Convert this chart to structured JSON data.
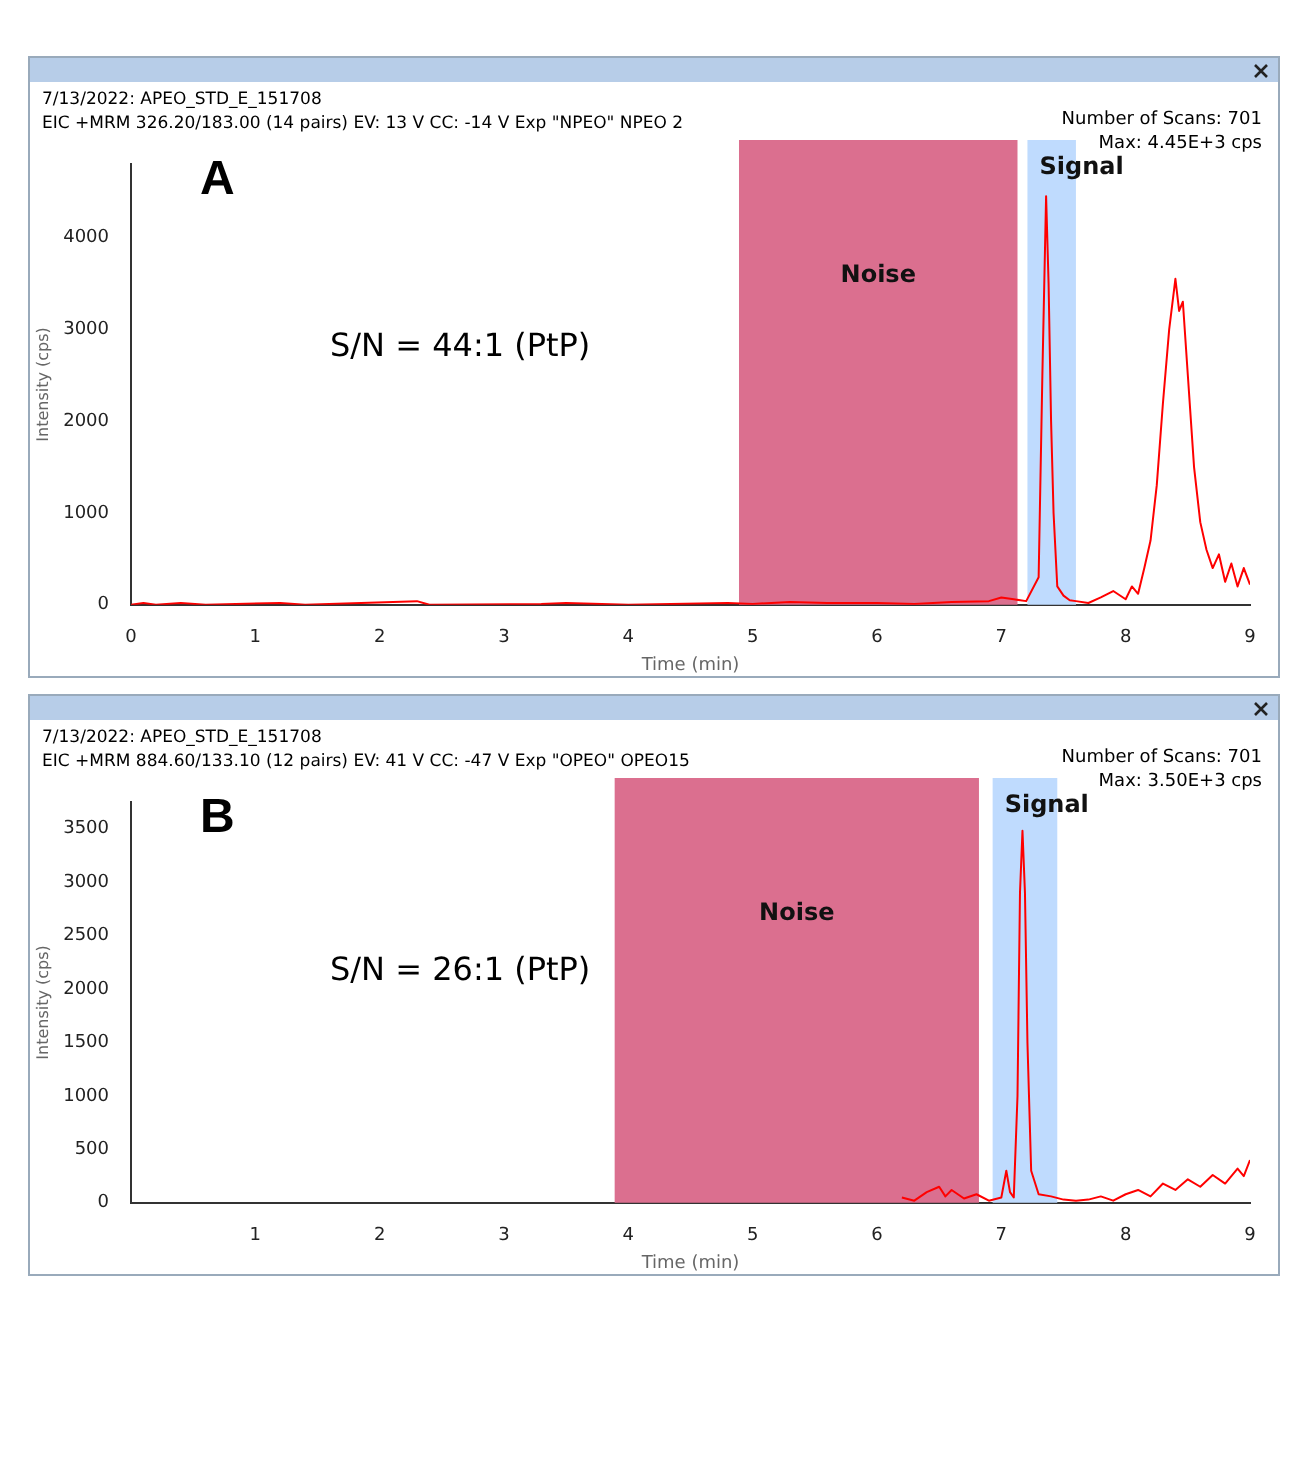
{
  "chart_data": [
    {
      "type": "line",
      "title": "7/13/2022: APEO_STD_E_151708",
      "subtitle": "EIC +MRM 326.20/183.00 (14 pairs) EV: 13 V CC: -14 V Exp \"NPEO\" NPEO 2",
      "xlabel": "Time (min)",
      "ylabel": "Intensity (cps)",
      "annotations": [
        "A",
        "S/N = 44:1 (PtP)",
        "Number of Scans: 701",
        "Max: 4.45E+3 cps"
      ],
      "x": [
        0,
        0.1,
        0.2,
        0.4,
        0.6,
        1.2,
        1.4,
        2.3,
        2.4,
        3.3,
        3.5,
        4.0,
        4.8,
        5.0,
        5.3,
        5.6,
        6.0,
        6.3,
        6.6,
        6.9,
        7.0,
        7.1,
        7.2,
        7.3,
        7.33,
        7.36,
        7.38,
        7.4,
        7.42,
        7.45,
        7.5,
        7.55,
        7.6,
        7.7,
        7.8,
        7.9,
        8.0,
        8.05,
        8.1,
        8.15,
        8.2,
        8.25,
        8.3,
        8.35,
        8.4,
        8.43,
        8.46,
        8.5,
        8.55,
        8.6,
        8.65,
        8.7,
        8.75,
        8.8,
        8.85,
        8.9,
        8.95,
        9.0
      ],
      "series": [
        {
          "color": "#ff0000",
          "values": [
            0,
            20,
            0,
            20,
            0,
            20,
            0,
            40,
            0,
            10,
            20,
            0,
            20,
            10,
            30,
            20,
            20,
            10,
            30,
            40,
            80,
            60,
            40,
            300,
            2500,
            4450,
            3500,
            2000,
            1000,
            200,
            100,
            50,
            40,
            20,
            80,
            150,
            60,
            200,
            120,
            400,
            700,
            1300,
            2200,
            3000,
            3550,
            3200,
            3300,
            2500,
            1500,
            900,
            600,
            400,
            550,
            250,
            450,
            200,
            400,
            220
          ]
        }
      ],
      "xlim": [
        0,
        9
      ],
      "xticks": [
        0,
        1,
        2,
        3,
        4,
        5,
        6,
        7,
        8,
        9
      ],
      "ylim": [
        0,
        4800
      ],
      "yticks": [
        0,
        1000,
        2000,
        3000,
        4000
      ],
      "bands": [
        {
          "axis": "x",
          "from": 4.89,
          "to": 7.13,
          "label": "Noise",
          "color": "#db6f8f"
        },
        {
          "axis": "x",
          "from": 7.21,
          "to": 7.6,
          "label": "Signal",
          "color": "#bfdbfe"
        }
      ],
      "grid": false,
      "legend": false,
      "marker": "none",
      "line_style": "solid"
    },
    {
      "type": "line",
      "title": "7/13/2022: APEO_STD_E_151708",
      "subtitle": "EIC +MRM 884.60/133.10 (12 pairs) EV: 41 V CC: -47 V Exp \"OPEO\" OPEO15",
      "xlabel": "Time (min)",
      "ylabel": "Intensity (cps)",
      "annotations": [
        "B",
        "S/N = 26:1 (PtP)",
        "Number of Scans: 701",
        "Max: 3.50E+3 cps"
      ],
      "x": [
        6.2,
        6.3,
        6.4,
        6.5,
        6.55,
        6.6,
        6.7,
        6.8,
        6.9,
        7.0,
        7.04,
        7.07,
        7.1,
        7.13,
        7.15,
        7.17,
        7.19,
        7.21,
        7.24,
        7.3,
        7.4,
        7.5,
        7.6,
        7.7,
        7.8,
        7.9,
        8.0,
        8.1,
        8.2,
        8.3,
        8.4,
        8.5,
        8.6,
        8.7,
        8.8,
        8.9,
        8.95,
        9.0
      ],
      "series": [
        {
          "color": "#ff0000",
          "values": [
            50,
            20,
            100,
            150,
            60,
            120,
            40,
            80,
            20,
            50,
            300,
            100,
            50,
            1000,
            2900,
            3480,
            2900,
            1500,
            300,
            80,
            60,
            30,
            20,
            30,
            60,
            20,
            80,
            120,
            60,
            180,
            120,
            220,
            150,
            260,
            180,
            320,
            250,
            400
          ]
        }
      ],
      "xlim": [
        0,
        9
      ],
      "xticks": [
        1,
        2,
        3,
        4,
        5,
        6,
        7,
        8,
        9
      ],
      "ylim": [
        0,
        3750
      ],
      "yticks": [
        0,
        500,
        1000,
        1500,
        2000,
        2500,
        3000,
        3500
      ],
      "bands": [
        {
          "axis": "x",
          "from": 3.89,
          "to": 6.82,
          "label": "Noise",
          "color": "#db6f8f"
        },
        {
          "axis": "x",
          "from": 6.93,
          "to": 7.45,
          "label": "Signal",
          "color": "#bfdbfe"
        }
      ],
      "grid": false,
      "legend": false,
      "marker": "none",
      "line_style": "solid"
    }
  ]
}
